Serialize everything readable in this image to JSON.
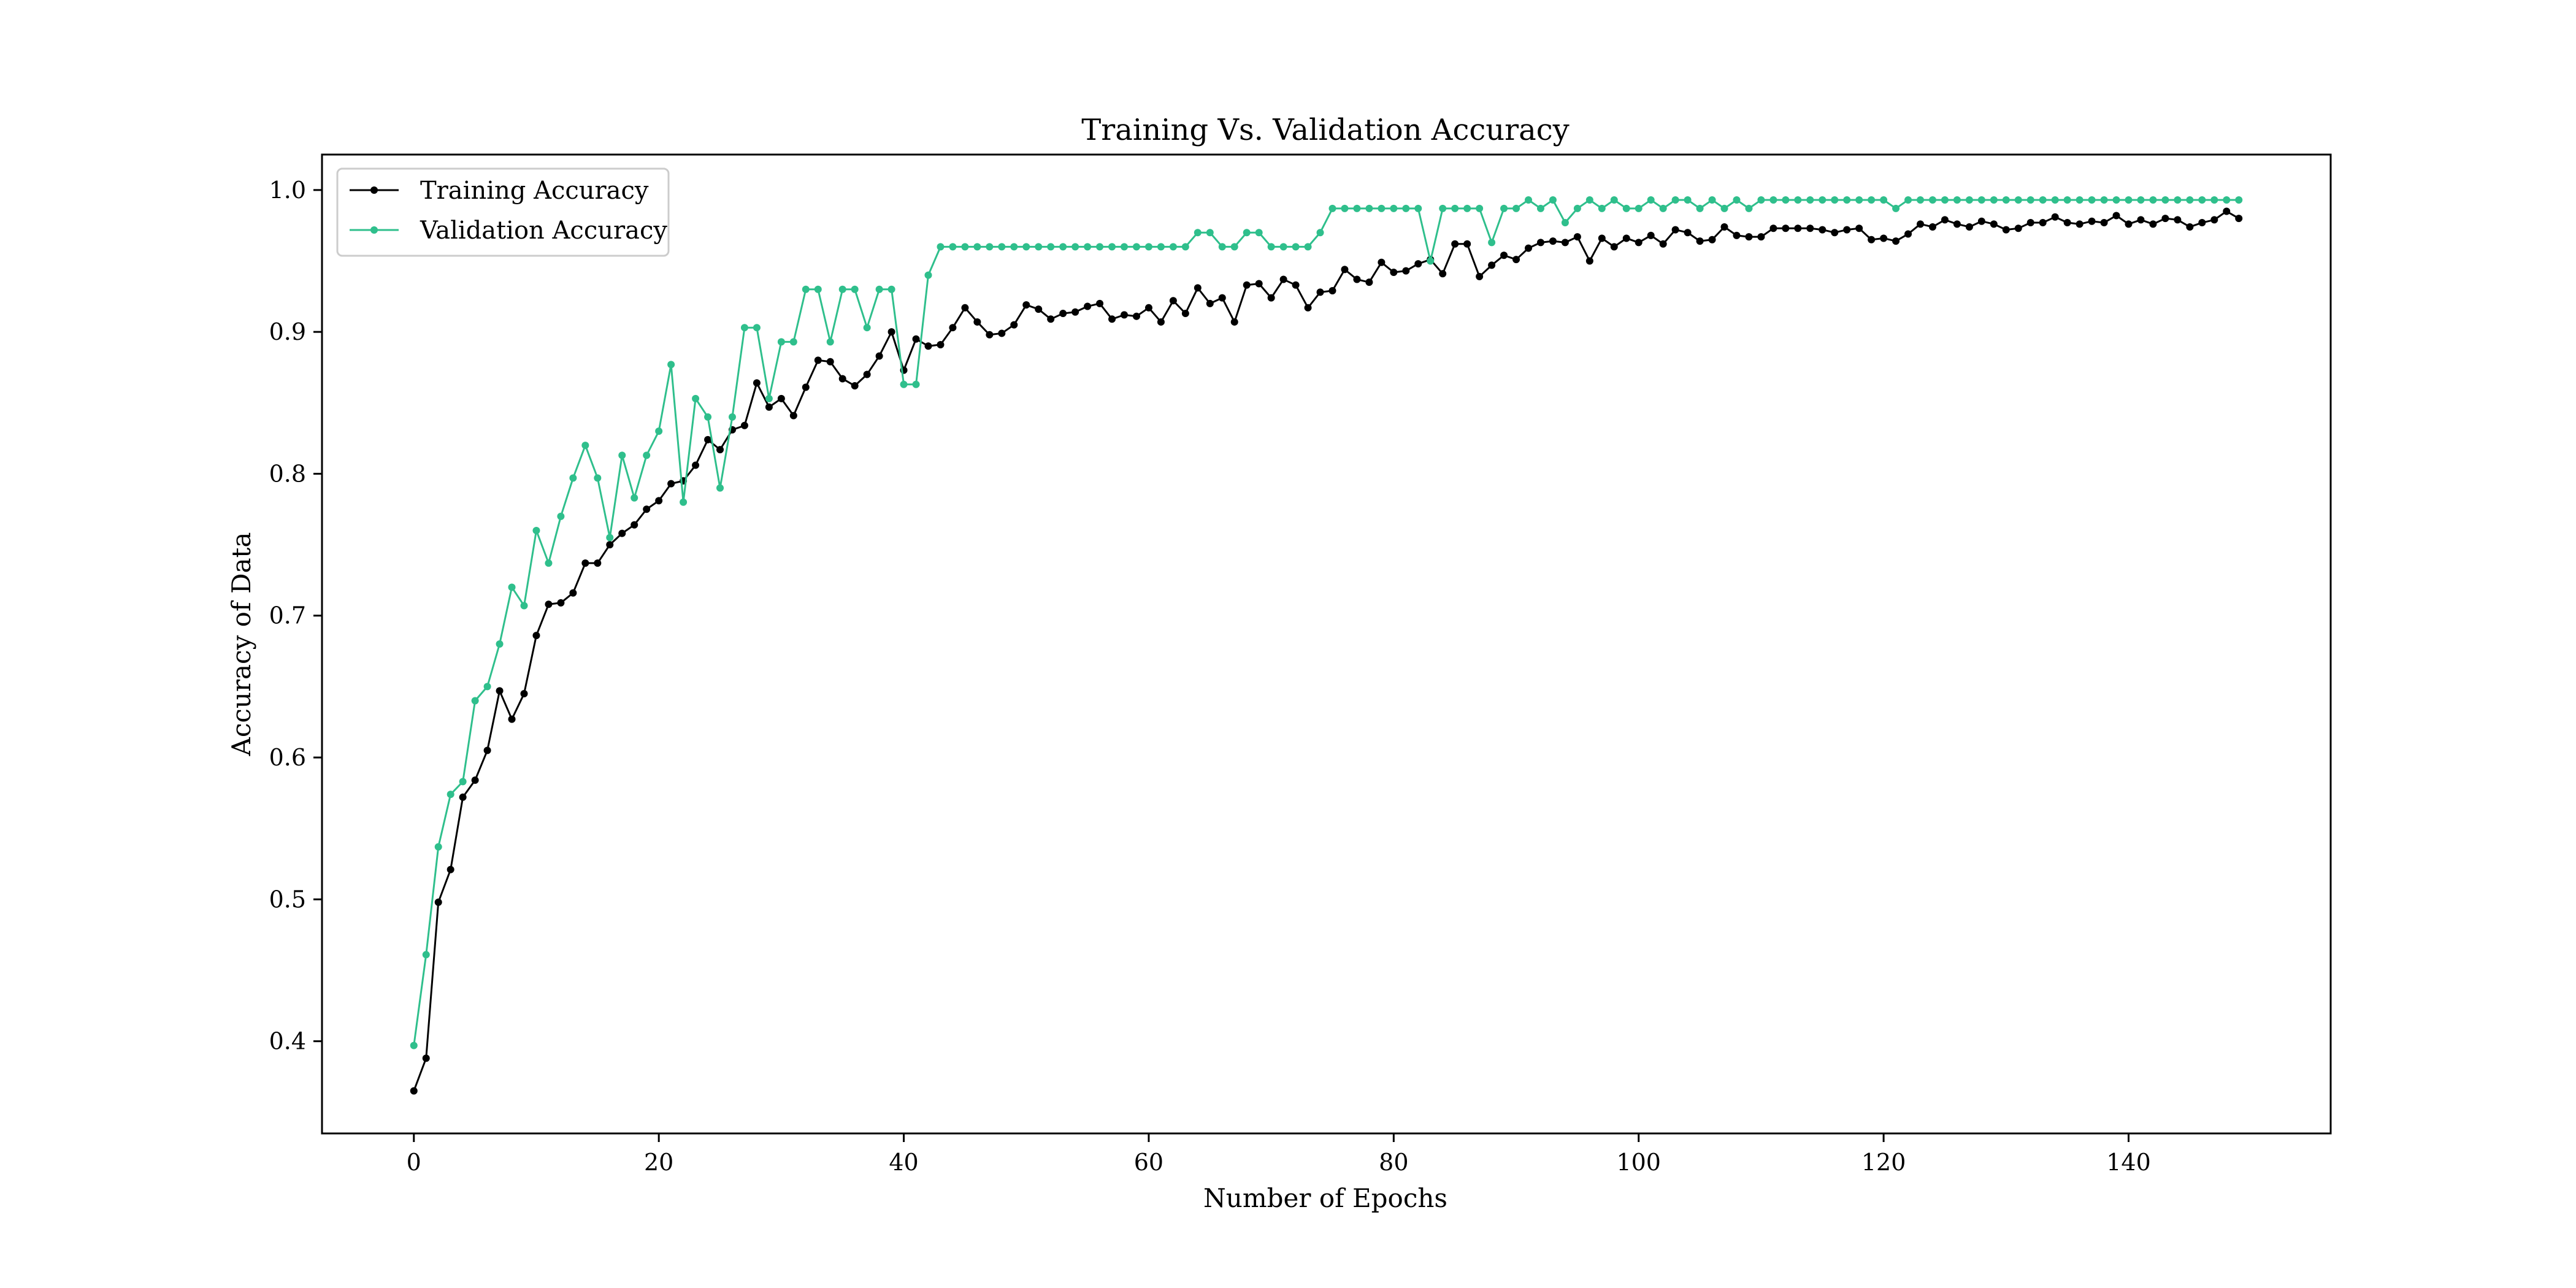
{
  "chart_data": {
    "type": "line",
    "title": "Training Vs. Validation Accuracy",
    "xlabel": "Number of Epochs",
    "ylabel": "Accuracy of Data",
    "xlim": [
      -7.5,
      156.5
    ],
    "ylim": [
      0.335,
      1.025
    ],
    "x_ticks": [
      0,
      20,
      40,
      60,
      80,
      100,
      120,
      140
    ],
    "y_ticks": [
      0.4,
      0.5,
      0.6,
      0.7,
      0.8,
      0.9,
      1.0
    ],
    "x_tick_labels": [
      "0",
      "20",
      "40",
      "60",
      "80",
      "100",
      "120",
      "140"
    ],
    "y_tick_labels": [
      "0.4",
      "0.5",
      "0.6",
      "0.7",
      "0.8",
      "0.9",
      "1.0"
    ],
    "grid": false,
    "legend_position": "top-left",
    "series": [
      {
        "name": "Training Accuracy",
        "color": "#000000",
        "values": [
          0.365,
          0.388,
          0.498,
          0.521,
          0.572,
          0.584,
          0.605,
          0.647,
          0.627,
          0.645,
          0.686,
          0.708,
          0.709,
          0.716,
          0.737,
          0.737,
          0.75,
          0.758,
          0.764,
          0.775,
          0.781,
          0.793,
          0.795,
          0.806,
          0.824,
          0.817,
          0.831,
          0.834,
          0.864,
          0.847,
          0.853,
          0.841,
          0.861,
          0.88,
          0.879,
          0.867,
          0.862,
          0.87,
          0.883,
          0.9,
          0.873,
          0.895,
          0.89,
          0.891,
          0.903,
          0.917,
          0.907,
          0.898,
          0.899,
          0.905,
          0.919,
          0.916,
          0.909,
          0.913,
          0.914,
          0.918,
          0.92,
          0.909,
          0.912,
          0.911,
          0.917,
          0.907,
          0.922,
          0.913,
          0.931,
          0.92,
          0.924,
          0.907,
          0.933,
          0.934,
          0.924,
          0.937,
          0.933,
          0.917,
          0.928,
          0.929,
          0.944,
          0.937,
          0.935,
          0.949,
          0.942,
          0.943,
          0.948,
          0.951,
          0.941,
          0.962,
          0.962,
          0.939,
          0.947,
          0.954,
          0.951,
          0.959,
          0.963,
          0.964,
          0.963,
          0.967,
          0.95,
          0.966,
          0.96,
          0.966,
          0.963,
          0.968,
          0.962,
          0.972,
          0.97,
          0.964,
          0.965,
          0.974,
          0.968,
          0.967,
          0.967,
          0.973,
          0.973,
          0.973,
          0.973,
          0.972,
          0.97,
          0.972,
          0.973,
          0.965,
          0.966,
          0.964,
          0.969,
          0.976,
          0.974,
          0.979,
          0.976,
          0.974,
          0.978,
          0.976,
          0.972,
          0.973,
          0.977,
          0.977,
          0.981,
          0.977,
          0.976,
          0.978,
          0.977,
          0.982,
          0.976,
          0.979,
          0.976,
          0.98,
          0.979,
          0.974,
          0.977,
          0.979,
          0.985,
          0.98
        ]
      },
      {
        "name": "Validation Accuracy",
        "color": "#2fbf8c",
        "values": [
          0.397,
          0.461,
          0.537,
          0.574,
          0.583,
          0.64,
          0.65,
          0.68,
          0.72,
          0.707,
          0.76,
          0.737,
          0.77,
          0.797,
          0.82,
          0.797,
          0.755,
          0.813,
          0.783,
          0.813,
          0.83,
          0.877,
          0.78,
          0.853,
          0.84,
          0.79,
          0.84,
          0.903,
          0.903,
          0.853,
          0.893,
          0.893,
          0.93,
          0.93,
          0.893,
          0.93,
          0.93,
          0.903,
          0.93,
          0.93,
          0.863,
          0.863,
          0.94,
          0.96,
          0.96,
          0.96,
          0.96,
          0.96,
          0.96,
          0.96,
          0.96,
          0.96,
          0.96,
          0.96,
          0.96,
          0.96,
          0.96,
          0.96,
          0.96,
          0.96,
          0.96,
          0.96,
          0.96,
          0.96,
          0.97,
          0.97,
          0.96,
          0.96,
          0.97,
          0.97,
          0.96,
          0.96,
          0.96,
          0.96,
          0.97,
          0.987,
          0.987,
          0.987,
          0.987,
          0.987,
          0.987,
          0.987,
          0.987,
          0.95,
          0.987,
          0.987,
          0.987,
          0.987,
          0.963,
          0.987,
          0.987,
          0.993,
          0.987,
          0.993,
          0.977,
          0.987,
          0.993,
          0.987,
          0.993,
          0.987,
          0.987,
          0.993,
          0.987,
          0.993,
          0.993,
          0.987,
          0.993,
          0.987,
          0.993,
          0.987,
          0.993,
          0.993,
          0.993,
          0.993,
          0.993,
          0.993,
          0.993,
          0.993,
          0.993,
          0.993,
          0.993,
          0.987,
          0.993,
          0.993,
          0.993,
          0.993,
          0.993,
          0.993,
          0.993,
          0.993,
          0.993,
          0.993,
          0.993,
          0.993,
          0.993,
          0.993,
          0.993,
          0.993,
          0.993,
          0.993,
          0.993,
          0.993,
          0.993,
          0.993,
          0.993,
          0.993,
          0.993,
          0.993,
          0.993,
          0.993
        ]
      }
    ]
  }
}
